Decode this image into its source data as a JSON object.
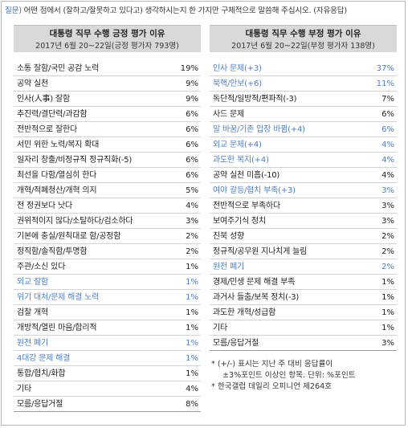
{
  "question": {
    "label": "질문)",
    "text": " 어떤 점에서 (잘하고/잘못하고 있다고) 생각하시는지 한 가지만 구체적으로 말씀해 주십시오. (자유응답)"
  },
  "positive": {
    "title": "대통령 직무 수행 긍정 평가 이유",
    "subtitle": "2017년 6월 20~22일(긍정 평가자 793명)",
    "rows": [
      {
        "label": "소통 잘함/국민 공감 노력",
        "value": "19%",
        "blue": false
      },
      {
        "label": "공약 실천",
        "value": "9%",
        "blue": false
      },
      {
        "label": "인사(人事) 잘함",
        "value": "9%",
        "blue": false
      },
      {
        "label": "추진력/결단력/과감함",
        "value": "6%",
        "blue": false
      },
      {
        "label": "전반적으로 잘한다",
        "value": "6%",
        "blue": false
      },
      {
        "label": "서민 위한 노력/복지 확대",
        "value": "6%",
        "blue": false
      },
      {
        "label": "일자리 창출/비정규직 정규직화(-5)",
        "value": "6%",
        "blue": false
      },
      {
        "label": "최선을 다함/열심히 한다",
        "value": "6%",
        "blue": false
      },
      {
        "label": "개혁/적폐청산/개혁 의지",
        "value": "5%",
        "blue": false
      },
      {
        "label": "전 정권보다 낫다",
        "value": "4%",
        "blue": false
      },
      {
        "label": "권위적이지 않다/소탈하다/검소하다",
        "value": "3%",
        "blue": false
      },
      {
        "label": "기본에 충실/원칙대로 함/공정함",
        "value": "2%",
        "blue": false
      },
      {
        "label": "정직함/솔직함/투명함",
        "value": "2%",
        "blue": false
      },
      {
        "label": "주관/소신 있다",
        "value": "1%",
        "blue": false
      },
      {
        "label": "외교 잘함",
        "value": "1%",
        "blue": true
      },
      {
        "label": "위기 대처/문제 해결 노력",
        "value": "1%",
        "blue": true
      },
      {
        "label": "검찰 개혁",
        "value": "1%",
        "blue": false
      },
      {
        "label": "개방적/열린 마음/합리적",
        "value": "1%",
        "blue": false
      },
      {
        "label": "원전 폐기",
        "value": "1%",
        "blue": true
      },
      {
        "label": "4대강 문제 해결",
        "value": "1%",
        "blue": true
      },
      {
        "label": "통합/협치/화합",
        "value": "1%",
        "blue": false
      },
      {
        "label": "기타",
        "value": "4%",
        "blue": false
      },
      {
        "label": "모름/응답거절",
        "value": "8%",
        "blue": false
      }
    ]
  },
  "negative": {
    "title": "대통령 직무 수행 부정 평가 이유",
    "subtitle": "2017년 6월 20~22일(부정 평가자 138명)",
    "rows": [
      {
        "label": "인사 문제(+3)",
        "value": "37%",
        "blue": true
      },
      {
        "label": "북핵/안보(+6)",
        "value": "11%",
        "blue": true
      },
      {
        "label": "독단적/일방적/편파적(-3)",
        "value": "7%",
        "blue": false
      },
      {
        "label": "사드 문제",
        "value": "6%",
        "blue": false
      },
      {
        "label": "말 바꿈/기존 입장 바뀜(+4)",
        "value": "6%",
        "blue": true
      },
      {
        "label": "외교 문제(+4)",
        "value": "4%",
        "blue": true
      },
      {
        "label": "과도한 복지(+4)",
        "value": "4%",
        "blue": true
      },
      {
        "label": "공약 실천 미흡(-10)",
        "value": "4%",
        "blue": false
      },
      {
        "label": "여야 갈등/협치 부족(+3)",
        "value": "3%",
        "blue": true
      },
      {
        "label": "전반적으로 부족하다",
        "value": "3%",
        "blue": false
      },
      {
        "label": "보여주기식 정치",
        "value": "3%",
        "blue": false
      },
      {
        "label": "친북 성향",
        "value": "2%",
        "blue": false
      },
      {
        "label": "정규직/공무원 지나치게 늘림",
        "value": "2%",
        "blue": false
      },
      {
        "label": "원전 폐기",
        "value": "2%",
        "blue": true
      },
      {
        "label": "경제/민생 문제 해결 부족",
        "value": "1%",
        "blue": false
      },
      {
        "label": "과거사 들춤/보복 정치(-3)",
        "value": "1%",
        "blue": false
      },
      {
        "label": "과도한 개혁/성급함",
        "value": "1%",
        "blue": false
      },
      {
        "label": "기타",
        "value": "1%",
        "blue": false
      },
      {
        "label": "모름/응답거절",
        "value": "3%",
        "blue": false
      }
    ],
    "notes": {
      "line1": "* (+/-) 표시는 지난 주 대비 응답률이",
      "line2": "±3%포인트 이상인 항목. 단위: %포인트",
      "line3": "* 한국갤럽 데일리 오피니언 제264호"
    }
  }
}
